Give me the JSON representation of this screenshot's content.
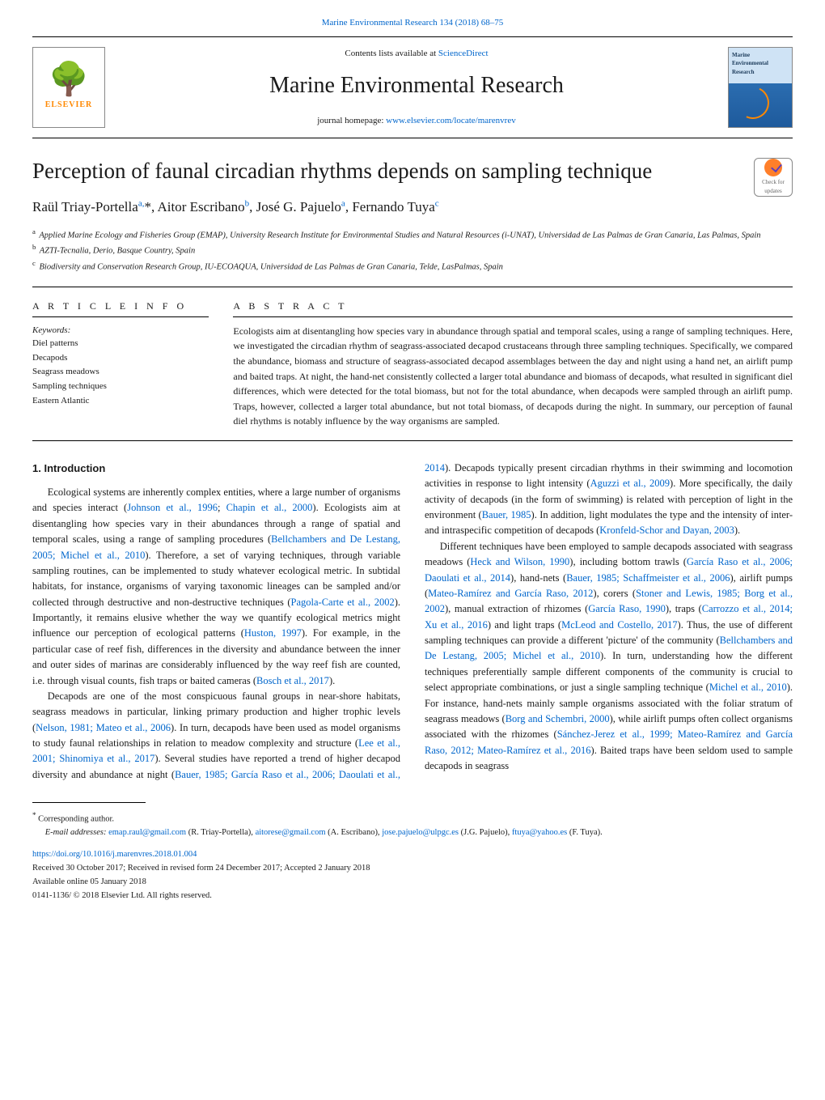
{
  "top_link": {
    "journal_ref": "Marine Environmental Research 134 (2018) 68–75",
    "href": "Marine Environmental Research"
  },
  "header": {
    "contents_prefix": "Contents lists available at ",
    "contents_link": "ScienceDirect",
    "journal_name": "Marine Environmental Research",
    "homepage_prefix": "journal homepage: ",
    "homepage_link": "www.elsevier.com/locate/marenvrev",
    "elsevier_label": "ELSEVIER",
    "cover_label": "Marine\nEnvironmental\nResearch"
  },
  "title": "Perception of faunal circadian rhythms depends on sampling technique",
  "check_badge": "Check for\nupdates",
  "authors_html": "Raül Triay-Portella<sup>a,</sup>*, Aitor Escribano<sup>b</sup>, José G. Pajuelo<sup>a</sup>, Fernando Tuya<sup>c</sup>",
  "affiliations": [
    {
      "sup": "a",
      "text": "Applied Marine Ecology and Fisheries Group (EMAP), University Research Institute for Environmental Studies and Natural Resources (i-UNAT), Universidad de Las Palmas de Gran Canaria, Las Palmas, Spain"
    },
    {
      "sup": "b",
      "text": "AZTI-Tecnalia, Derio, Basque Country, Spain"
    },
    {
      "sup": "c",
      "text": "Biodiversity and Conservation Research Group, IU-ECOAQUA, Universidad de Las Palmas de Gran Canaria, Telde, LasPalmas, Spain"
    }
  ],
  "article_info": {
    "head": "A R T I C L E  I N F O",
    "keywords_label": "Keywords:",
    "keywords": [
      "Diel patterns",
      "Decapods",
      "Seagrass meadows",
      "Sampling techniques",
      "Eastern Atlantic"
    ]
  },
  "abstract": {
    "head": "A B S T R A C T",
    "text": "Ecologists aim at disentangling how species vary in abundance through spatial and temporal scales, using a range of sampling techniques. Here, we investigated the circadian rhythm of seagrass-associated decapod crustaceans through three sampling techniques. Specifically, we compared the abundance, biomass and structure of seagrass-associated decapod assemblages between the day and night using a hand net, an airlift pump and baited traps. At night, the hand-net consistently collected a larger total abundance and biomass of decapods, what resulted in significant diel differences, which were detected for the total biomass, but not for the total abundance, when decapods were sampled through an airlift pump. Traps, however, collected a larger total abundance, but not total biomass, of decapods during the night. In summary, our perception of faunal diel rhythms is notably influence by the way organisms are sampled."
  },
  "intro": {
    "heading": "1. Introduction",
    "p1_pre": "Ecological systems are inherently complex entities, where a large number of organisms and species interact (",
    "p1_r1": "Johnson et al., 1996",
    "p1_m1": "; ",
    "p1_r2": "Chapin et al., 2000",
    "p1_m2": "). Ecologists aim at disentangling how species vary in their abundances through a range of spatial and temporal scales, using a range of sampling procedures (",
    "p1_r3": "Bellchambers and De Lestang, 2005; Michel et al., 2010",
    "p1_m3": "). Therefore, a set of varying techniques, through variable sampling routines, can be implemented to study whatever ecological metric. In subtidal habitats, for instance, organisms of varying taxonomic lineages can be sampled and/or collected through destructive and non-destructive techniques (",
    "p1_r4": "Pagola-Carte et al., 2002",
    "p1_m4": "). Importantly, it remains elusive whether the way we quantify ecological metrics might influence our perception of ecological patterns (",
    "p1_r5": "Huston, 1997",
    "p1_m5": "). For example, in the particular case of reef fish, differences in the diversity and abundance between the inner and outer sides of marinas are considerably influenced by the way reef fish are counted, i.e. through visual counts, fish traps or baited cameras (",
    "p1_r6": "Bosch et al., 2017",
    "p1_m6": ").",
    "p2_pre": "Decapods are one of the most conspicuous faunal groups in near-shore habitats, seagrass meadows in particular, linking primary production and higher trophic levels (",
    "p2_r1": "Nelson, 1981; Mateo et al., 2006",
    "p2_m1": "). In turn, decapods have been used as model organisms to study faunal relationships in relation to meadow complexity and structure (",
    "p2_r2": "Lee et al., 2001; Shinomiya et al., 2017",
    "p2_m2": "). Several studies have reported a trend of higher decapod diversity and abundance at night (",
    "p2_r3": "Bauer, 1985; García Raso et al., 2006; Daoulati et al., 2014",
    "p2_m3": "). Decapods typically present circadian rhythms in their swimming and locomotion activities in response to light intensity (",
    "p2_r4": "Aguzzi et al., 2009",
    "p2_m4": "). More specifically, the daily activity of decapods (in the form of swimming) is related with perception of light in the environment (",
    "p2_r5": "Bauer, 1985",
    "p2_m5": "). In addition, light modulates the type and the intensity of inter- and intraspecific competition of decapods (",
    "p2_r6": "Kronfeld-Schor and Dayan, 2003",
    "p2_m6": ").",
    "p3_pre": "Different techniques have been employed to sample decapods associated with seagrass meadows (",
    "p3_r1": "Heck and Wilson, 1990",
    "p3_m1": "), including bottom trawls (",
    "p3_r2": "García Raso et al., 2006; Daoulati et al., 2014",
    "p3_m2": "), hand-nets (",
    "p3_r3": "Bauer, 1985; Schaffmeister et al., 2006",
    "p3_m3": "), airlift pumps (",
    "p3_r4": "Mateo-Ramírez and García Raso, 2012",
    "p3_m4": "), corers (",
    "p3_r5": "Stoner and Lewis, 1985; Borg et al., 2002",
    "p3_m5": "), manual extraction of rhizomes (",
    "p3_r6": "García Raso, 1990",
    "p3_m6": "), traps (",
    "p3_r7": "Carrozzo et al., 2014; Xu et al., 2016",
    "p3_m7": ") and light traps (",
    "p3_r8": "McLeod and Costello, 2017",
    "p3_m8": "). Thus, the use of different sampling techniques can provide a different 'picture' of the community (",
    "p3_r9": "Bellchambers and De Lestang, 2005; Michel et al., 2010",
    "p3_m9": "). In turn, understanding how the different techniques preferentially sample different components of the community is crucial to select appropriate combinations, or just a single sampling technique (",
    "p3_r10": "Michel et al., 2010",
    "p3_m10": "). For instance, hand-nets mainly sample organisms associated with the foliar stratum of seagrass meadows (",
    "p3_r11": "Borg and Schembri, 2000",
    "p3_m11": "), while airlift pumps often collect organisms associated with the rhizomes (",
    "p3_r12": "Sánchez-Jerez et al., 1999; Mateo-Ramírez and García Raso, 2012; Mateo-Ramírez et al., 2016",
    "p3_m12": "). Baited traps have been seldom used to sample decapods in seagrass"
  },
  "footer": {
    "corr": "Corresponding author.",
    "email_label": "E-mail addresses: ",
    "emails": [
      {
        "addr": "emap.raul@gmail.com",
        "who": " (R. Triay-Portella), "
      },
      {
        "addr": "aitorese@gmail.com",
        "who": " (A. Escribano), "
      },
      {
        "addr": "jose.pajuelo@ulpgc.es",
        "who": " (J.G. Pajuelo), "
      },
      {
        "addr": "ftuya@yahoo.es",
        "who": " (F. Tuya)."
      }
    ],
    "doi": "https://doi.org/10.1016/j.marenvres.2018.01.004",
    "received": "Received 30 October 2017; Received in revised form 24 December 2017; Accepted 2 January 2018",
    "online": "Available online 05 January 2018",
    "copyright": "0141-1136/ © 2018 Elsevier Ltd. All rights reserved."
  },
  "colors": {
    "link": "#0066cc",
    "elsevier_orange": "#ff8800",
    "text": "#1a1a1a"
  }
}
